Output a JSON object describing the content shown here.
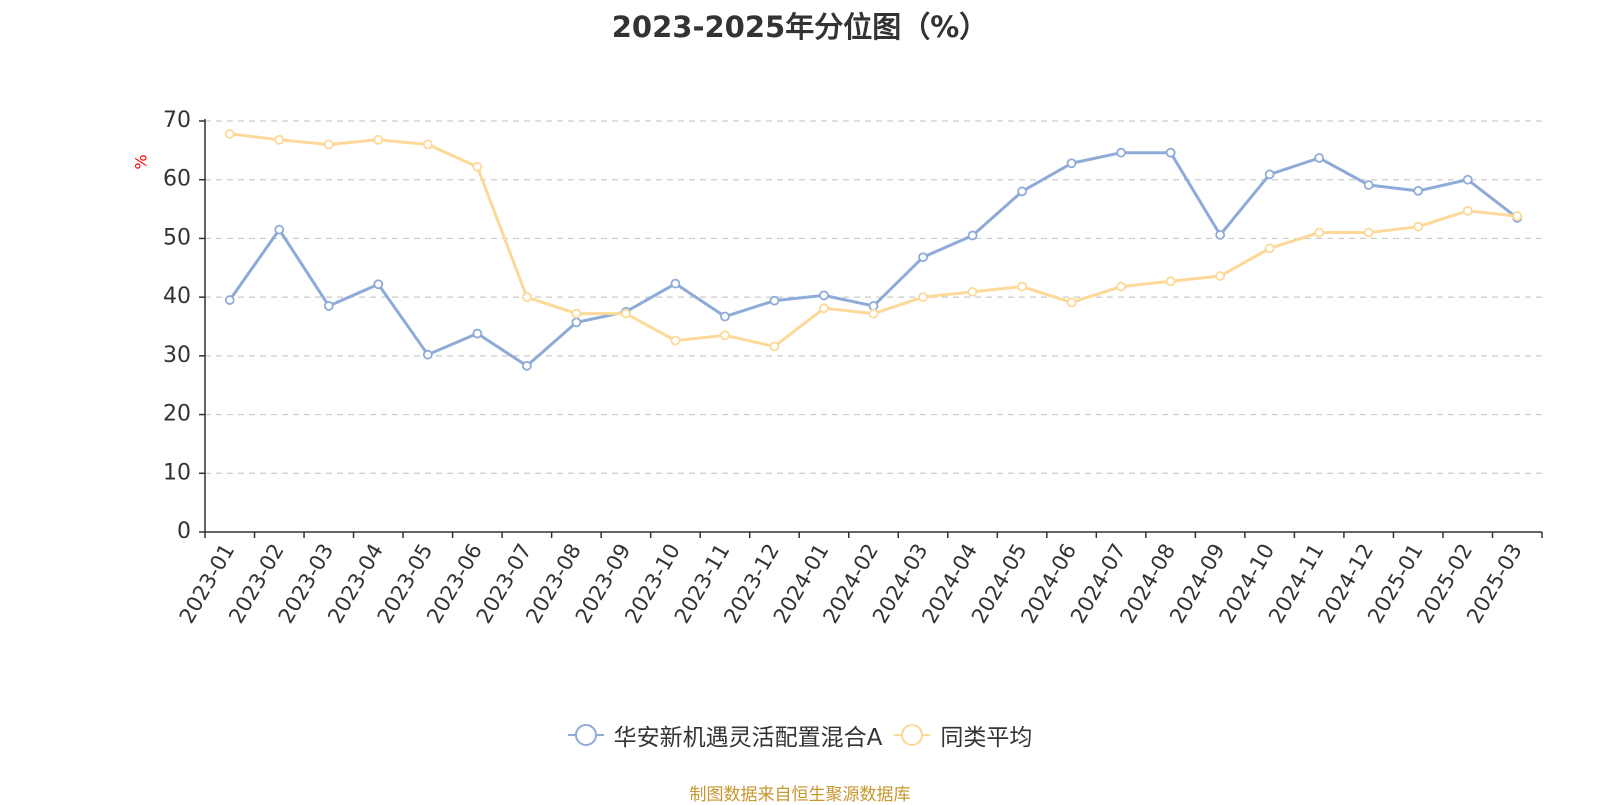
{
  "colors": {
    "series_a": "#8eabd8",
    "series_b": "#fdd999",
    "grid": "#cccccc",
    "axis": "#333333",
    "ylabel": "#ff0000",
    "source": "#c8962e",
    "title": "#333333"
  },
  "source_note": "制图数据来自恒生聚源数据库",
  "chart_data": {
    "type": "line",
    "title": "2023-2025年分位图（%）",
    "xlabel": "",
    "ylabel": "%",
    "ylim": [
      0,
      70
    ],
    "yticks": [
      0,
      10,
      20,
      30,
      40,
      50,
      60,
      70
    ],
    "grid": true,
    "legend_position": "bottom",
    "categories": [
      "2023-01",
      "2023-02",
      "2023-03",
      "2023-04",
      "2023-05",
      "2023-06",
      "2023-07",
      "2023-08",
      "2023-09",
      "2023-10",
      "2023-11",
      "2023-12",
      "2024-01",
      "2024-02",
      "2024-03",
      "2024-04",
      "2024-05",
      "2024-06",
      "2024-07",
      "2024-08",
      "2024-09",
      "2024-10",
      "2024-11",
      "2024-12",
      "2025-01",
      "2025-02",
      "2025-03"
    ],
    "series": [
      {
        "name": "华安新机遇灵活配置混合A",
        "values": [
          39.5,
          51.5,
          38.5,
          42.2,
          30.2,
          33.8,
          28.3,
          35.7,
          37.5,
          42.3,
          36.7,
          39.4,
          40.3,
          38.5,
          46.8,
          50.5,
          58.0,
          62.8,
          64.6,
          64.6,
          50.6,
          60.9,
          63.7,
          59.1,
          58.1,
          60.0,
          53.5
        ]
      },
      {
        "name": "同类平均",
        "values": [
          67.8,
          66.8,
          66.0,
          66.8,
          66.0,
          62.2,
          40.0,
          37.2,
          37.2,
          32.6,
          33.5,
          31.6,
          38.1,
          37.2,
          40.0,
          40.9,
          41.8,
          39.1,
          41.8,
          42.7,
          43.6,
          48.3,
          51.0,
          51.0,
          52.0,
          54.7,
          53.8
        ]
      }
    ]
  }
}
